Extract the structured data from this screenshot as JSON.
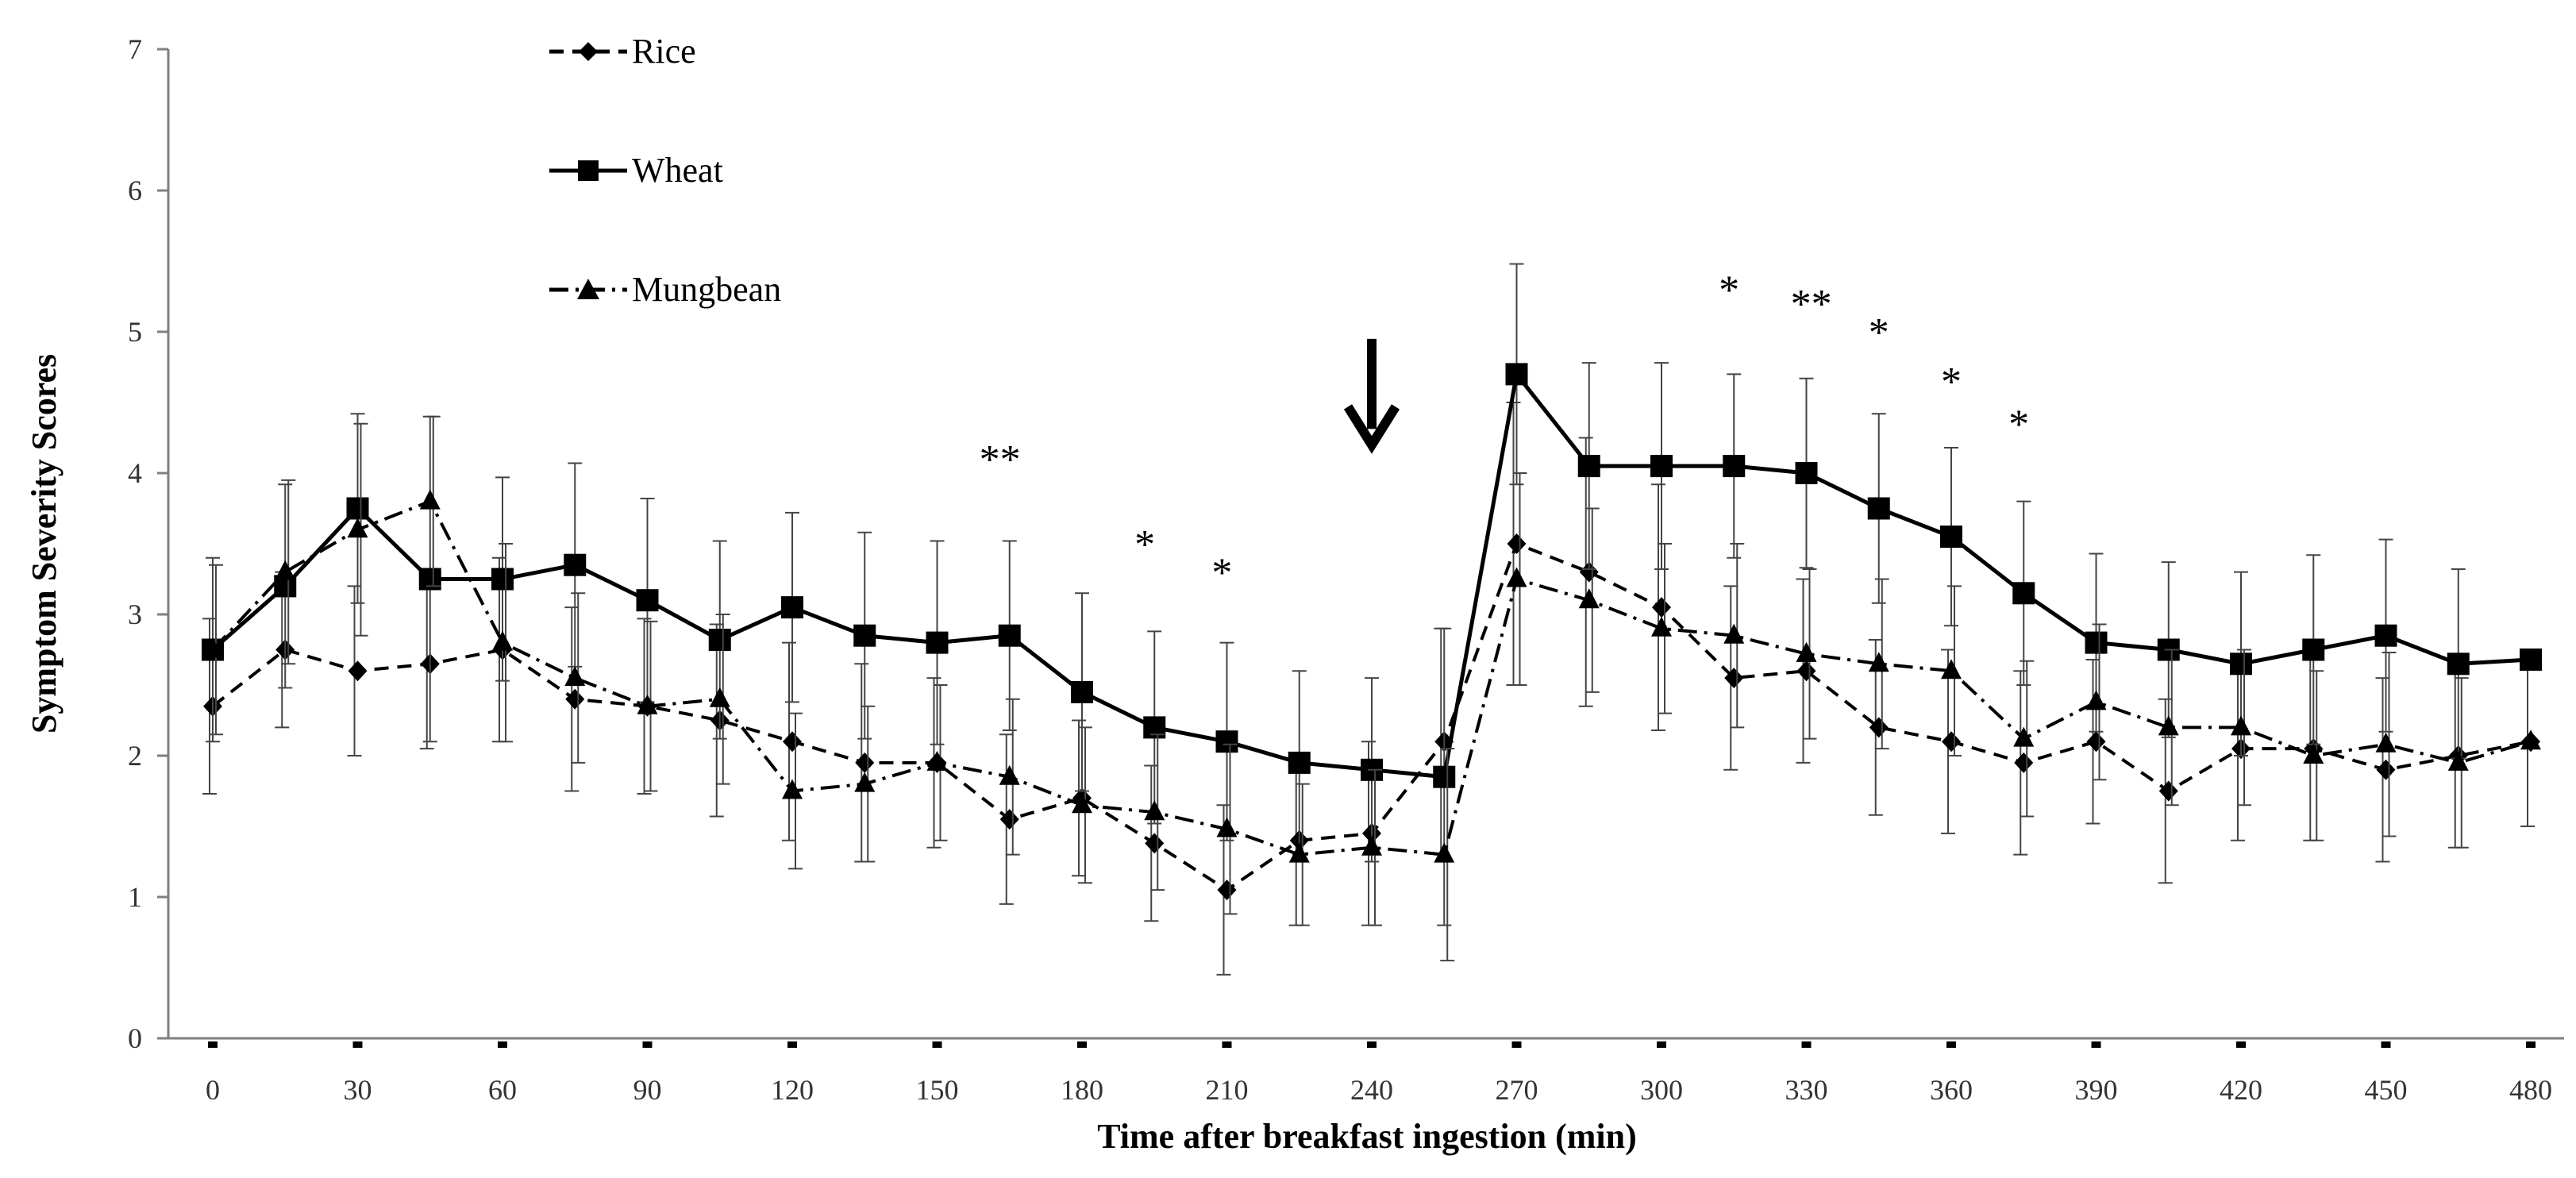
{
  "chart_data": {
    "type": "line",
    "title": "",
    "xlabel": "Time after breakfast ingestion (min)",
    "ylabel": "Symptom Severity Scores",
    "xlim": [
      -10,
      482
    ],
    "ylim": [
      0,
      7
    ],
    "x_ticks": [
      0,
      30,
      60,
      90,
      120,
      150,
      180,
      210,
      240,
      270,
      300,
      330,
      360,
      390,
      420,
      450,
      480
    ],
    "y_ticks": [
      0,
      1,
      2,
      3,
      4,
      5,
      6,
      7
    ],
    "x": [
      0,
      15,
      30,
      45,
      60,
      75,
      90,
      105,
      120,
      135,
      150,
      165,
      180,
      195,
      210,
      225,
      240,
      255,
      270,
      285,
      300,
      315,
      330,
      345,
      360,
      375,
      390,
      405,
      420,
      435,
      450,
      465,
      480
    ],
    "series": [
      {
        "name": "Rice",
        "marker": "diamond",
        "dash": "dash",
        "values": [
          2.35,
          2.75,
          2.6,
          2.65,
          2.75,
          2.4,
          2.35,
          2.25,
          2.1,
          1.95,
          1.95,
          1.55,
          1.7,
          1.38,
          1.05,
          1.4,
          1.45,
          2.1,
          3.5,
          3.3,
          3.05,
          2.55,
          2.6,
          2.2,
          2.1,
          1.95,
          2.1,
          1.75,
          2.05,
          2.05,
          1.9,
          2.0,
          2.1
        ],
        "errors": [
          0.62,
          0.55,
          0.6,
          0.6,
          0.65,
          0.65,
          0.62,
          0.68,
          0.7,
          0.7,
          0.6,
          0.6,
          0.55,
          0.55,
          0.6,
          0.6,
          0.65,
          0.8,
          1.0,
          0.95,
          0.87,
          0.65,
          0.65,
          0.62,
          0.65,
          0.65,
          0.58,
          0.65,
          0.65,
          0.65,
          0.65,
          0.65,
          0.6
        ]
      },
      {
        "name": "Wheat",
        "marker": "square",
        "dash": "solid",
        "values": [
          2.75,
          3.2,
          3.75,
          3.25,
          3.25,
          3.35,
          3.1,
          2.82,
          3.05,
          2.85,
          2.8,
          2.85,
          2.45,
          2.2,
          2.1,
          1.95,
          1.9,
          1.85,
          4.7,
          4.05,
          4.05,
          4.05,
          4.0,
          3.75,
          3.55,
          3.15,
          2.8,
          2.75,
          2.65,
          2.75,
          2.85,
          2.65,
          2.68
        ],
        "errors": [
          0.65,
          0.72,
          0.67,
          1.15,
          0.72,
          0.72,
          0.72,
          0.7,
          0.67,
          0.73,
          0.72,
          0.67,
          0.7,
          0.68,
          0.7,
          0.65,
          0.65,
          1.05,
          0.78,
          0.73,
          0.73,
          0.65,
          0.67,
          0.67,
          0.63,
          0.65,
          0.63,
          0.62,
          0.65,
          0.67,
          0.68,
          0.67,
          0.0
        ]
      },
      {
        "name": "Mungbean",
        "marker": "triangle",
        "dash": "dashdot",
        "values": [
          2.75,
          3.3,
          3.6,
          3.8,
          2.8,
          2.55,
          2.35,
          2.4,
          1.75,
          1.8,
          1.95,
          1.85,
          1.65,
          1.6,
          1.48,
          1.3,
          1.35,
          1.3,
          3.25,
          3.1,
          2.9,
          2.85,
          2.72,
          2.65,
          2.6,
          2.12,
          2.38,
          2.2,
          2.2,
          2.0,
          2.08,
          1.95,
          2.1
        ],
        "errors": [
          0.6,
          0.65,
          0.75,
          0.6,
          0.7,
          0.6,
          0.6,
          0.6,
          0.55,
          0.55,
          0.55,
          0.55,
          0.55,
          0.55,
          0.6,
          0.5,
          0.55,
          0.75,
          0.75,
          0.65,
          0.6,
          0.65,
          0.6,
          0.6,
          0.6,
          0.55,
          0.55,
          0.55,
          0.55,
          0.6,
          0.65,
          0.6,
          0.0
        ]
      }
    ],
    "annotations": [
      {
        "x": 163,
        "y": 4.0,
        "text": "**"
      },
      {
        "x": 193,
        "y": 3.4,
        "text": "*"
      },
      {
        "x": 209,
        "y": 3.2,
        "text": "*"
      },
      {
        "x": 314,
        "y": 5.2,
        "text": "*"
      },
      {
        "x": 331,
        "y": 5.1,
        "text": "**"
      },
      {
        "x": 345,
        "y": 4.9,
        "text": "*"
      },
      {
        "x": 360,
        "y": 4.55,
        "text": "*"
      },
      {
        "x": 374,
        "y": 4.25,
        "text": "*"
      }
    ],
    "arrow": {
      "x": 240,
      "y_top": 4.95,
      "y_bottom": 4.2,
      "direction": "down"
    },
    "legend": {
      "placement": "top-left",
      "entries": [
        "Rice",
        "Wheat",
        "Mungbean"
      ]
    }
  }
}
